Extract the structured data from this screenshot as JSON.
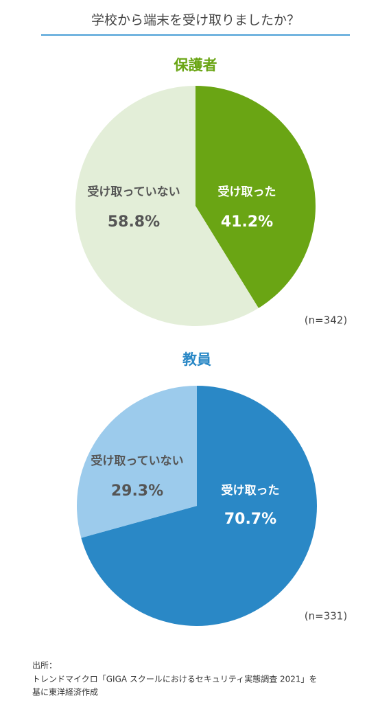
{
  "title": "学校から端末を受け取りましたか？",
  "chart_data": [
    {
      "type": "pie",
      "title": "保護者",
      "title_color": "#6aa514",
      "categories": [
        "受け取った",
        "受け取っていない"
      ],
      "values": [
        41.2,
        58.8
      ],
      "value_labels": [
        "41.2%",
        "58.8%"
      ],
      "colors": [
        "#6aa514",
        "#e3eed8"
      ],
      "note": "(n=342)"
    },
    {
      "type": "pie",
      "title": "教員",
      "title_color": "#2a88c6",
      "categories": [
        "受け取った",
        "受け取っていない"
      ],
      "values": [
        70.7,
        29.3
      ],
      "value_labels": [
        "70.7%",
        "29.3%"
      ],
      "colors": [
        "#2a88c6",
        "#9ccbec"
      ],
      "note": "(n=331)"
    }
  ],
  "source": [
    "出所：",
    "トレンドマイクロ「GIGA スクールにおけるセキュリティ実態調査 2021」を",
    "基に東洋経済作成"
  ]
}
